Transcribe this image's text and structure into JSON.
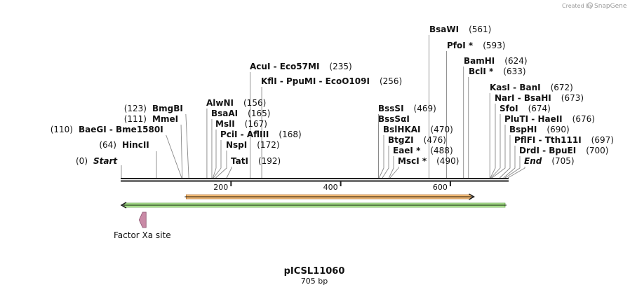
{
  "credit": {
    "prefix": "Created by",
    "brand": "SnapGene"
  },
  "sequence": {
    "name": "pICSL11060",
    "length_label": "705 bp",
    "length": 705
  },
  "axis_ticks": [
    200,
    400,
    600
  ],
  "sites": [
    {
      "label": "Start",
      "pos": 0,
      "pos_label": "(0)",
      "kind": "terminus"
    },
    {
      "label": "HincII",
      "pos": 64,
      "pos_label": "(64)",
      "kind": "enzyme"
    },
    {
      "label": "BaeGI  -  Bme1580I",
      "pos": 110,
      "pos_label": "(110)",
      "kind": "enzyme"
    },
    {
      "label": "MmeI",
      "pos": 111,
      "pos_label": "(111)",
      "kind": "enzyme"
    },
    {
      "label": "BmgBI",
      "pos": 123,
      "pos_label": "(123)",
      "kind": "enzyme"
    },
    {
      "label": "AlwNI",
      "pos": 156,
      "pos_label": "(156)",
      "kind": "enzyme"
    },
    {
      "label": "BsaAI",
      "pos": 165,
      "pos_label": "(165)",
      "kind": "enzyme"
    },
    {
      "label": "MslI",
      "pos": 167,
      "pos_label": "(167)",
      "kind": "enzyme"
    },
    {
      "label": "PciI  -  AflIII",
      "pos": 168,
      "pos_label": "(168)",
      "kind": "enzyme"
    },
    {
      "label": "NspI",
      "pos": 172,
      "pos_label": "(172)",
      "kind": "enzyme"
    },
    {
      "label": "TatI",
      "pos": 192,
      "pos_label": "(192)",
      "kind": "enzyme"
    },
    {
      "label": "AcuI  -  Eco57MI",
      "pos": 235,
      "pos_label": "(235)",
      "kind": "enzyme"
    },
    {
      "label": "KflI  -  PpuMI  -  EcoO109I",
      "pos": 256,
      "pos_label": "(256)",
      "kind": "enzyme"
    },
    {
      "label": "BssSI",
      "pos": 469,
      "pos_label": "(469)",
      "kind": "enzyme"
    },
    {
      "label": "BssSαI",
      "pos": 469,
      "pos_label": "",
      "kind": "enzyme"
    },
    {
      "label": "BslHKAI",
      "pos": 470,
      "pos_label": "(470)",
      "kind": "enzyme"
    },
    {
      "label": "BtgZI",
      "pos": 476,
      "pos_label": "(476)",
      "kind": "enzyme"
    },
    {
      "label": "EaeI *",
      "pos": 488,
      "pos_label": "(488)",
      "kind": "enzyme"
    },
    {
      "label": "MscI *",
      "pos": 490,
      "pos_label": "(490)",
      "kind": "enzyme"
    },
    {
      "label": "BsaWI",
      "pos": 561,
      "pos_label": "(561)",
      "kind": "enzyme"
    },
    {
      "label": "PfoI *",
      "pos": 593,
      "pos_label": "(593)",
      "kind": "enzyme"
    },
    {
      "label": "BamHI",
      "pos": 624,
      "pos_label": "(624)",
      "kind": "enzyme"
    },
    {
      "label": "BclI *",
      "pos": 633,
      "pos_label": "(633)",
      "kind": "enzyme"
    },
    {
      "label": "KasI  -  BanI",
      "pos": 672,
      "pos_label": "(672)",
      "kind": "enzyme"
    },
    {
      "label": "NarI  -  BsaHI",
      "pos": 673,
      "pos_label": "(673)",
      "kind": "enzyme"
    },
    {
      "label": "SfoI",
      "pos": 674,
      "pos_label": "(674)",
      "kind": "enzyme"
    },
    {
      "label": "PluTI  -  HaeII",
      "pos": 676,
      "pos_label": "(676)",
      "kind": "enzyme"
    },
    {
      "label": "BspHI",
      "pos": 690,
      "pos_label": "(690)",
      "kind": "enzyme"
    },
    {
      "label": "PflFI  -  Tth111I",
      "pos": 697,
      "pos_label": "(697)",
      "kind": "enzyme"
    },
    {
      "label": "DrdI  -  BpuEI",
      "pos": 700,
      "pos_label": "(700)",
      "kind": "enzyme"
    },
    {
      "label": "End",
      "pos": 705,
      "pos_label": "(705)",
      "kind": "terminus"
    }
  ],
  "features": [
    {
      "name": "orange-feature",
      "start": 113,
      "end": 643,
      "direction": "forward",
      "color": "#f0a040"
    },
    {
      "name": "green-feature",
      "start": 0,
      "end": 705,
      "direction": "reverse",
      "color": "#88dd66"
    }
  ],
  "factor_xa": {
    "label": "Factor Xa site",
    "pos": 40,
    "color": "#c98aa6"
  },
  "colors": {
    "backbone": "#222222",
    "leader": "#888888"
  }
}
